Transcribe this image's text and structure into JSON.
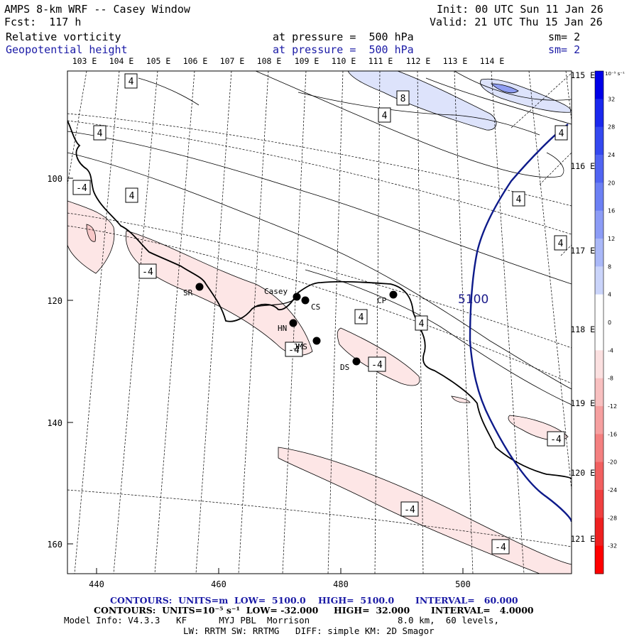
{
  "header": {
    "title": "AMPS 8-km WRF -- Casey Window",
    "forecast": "Fcst:  117 h",
    "init": "Init: 00 UTC Sun 11 Jan 26",
    "valid": "Valid: 21 UTC Thu 15 Jan 26",
    "field1_name": "Relative vorticity",
    "field1_level": "at pressure =  500 hPa",
    "field1_sm": "sm= 2",
    "field2_name": "Geopotential height",
    "field2_level": "at pressure =  500 hPa",
    "field2_sm": "sm= 2"
  },
  "map": {
    "lon_labels_top": [
      "103 E",
      "104 E",
      "105 E",
      "106 E",
      "107 E",
      "108 E",
      "109 E",
      "110 E",
      "111 E",
      "112 E",
      "113 E",
      "114 E"
    ],
    "lon_labels_right": [
      "115 E",
      "116 E",
      "117 E",
      "118 E",
      "119 E",
      "120 E",
      "121 E"
    ],
    "x_ticks": [
      "440",
      "460",
      "480",
      "500"
    ],
    "y_ticks": [
      "100",
      "120",
      "140",
      "160"
    ],
    "stations": [
      {
        "name": "SR"
      },
      {
        "name": "Casey"
      },
      {
        "name": "CS"
      },
      {
        "name": "HN"
      },
      {
        "name": "JMS"
      },
      {
        "name": "DS"
      },
      {
        "name": "CP"
      }
    ],
    "height_contour_label": "5100",
    "vorticity_labels": [
      "4",
      "4",
      "4",
      "4",
      "4",
      "4",
      "4",
      "4",
      "4",
      "-4",
      "-4",
      "-4",
      "-4",
      "-4",
      "-4",
      "-4",
      "8"
    ]
  },
  "colorbar": {
    "unit": "10⁻⁵ s⁻¹",
    "labels": [
      "32",
      "28",
      "24",
      "20",
      "16",
      "12",
      "8",
      "4",
      "0",
      "-4",
      "-8",
      "-12",
      "-16",
      "-20",
      "-24",
      "-28",
      "-32"
    ],
    "colors": [
      "#0000e8",
      "#1a28ee",
      "#3448f0",
      "#5064f2",
      "#6c80f4",
      "#8c9cf6",
      "#aab8f8",
      "#cad4fa",
      "#ffffff",
      "#ffffff",
      "#fbe0e0",
      "#f8c0c0",
      "#f6a0a0",
      "#f48080",
      "#f26060",
      "#f04040",
      "#ee2020",
      "#ff0000"
    ]
  },
  "footer": {
    "line1_a": "CONTOURS:  UNITS=m  LOW=  5100.0",
    "line1_b": "HIGH=  5100.0",
    "line1_c": "INTERVAL=   60.000",
    "line2_a": "CONTOURS:  UNITS=10⁻⁵ s⁻¹  LOW= -32.000",
    "line2_b": "HIGH=  32.000",
    "line2_c": "INTERVAL=   4.0000",
    "line3_a": "Model Info: V4.3.3   KF      MYJ PBL  Morrison",
    "line3_b": "8.0 km,  60 levels,",
    "line4": "LW: RRTM SW: RRTMG   DIFF: simple KM: 2D Smagor"
  }
}
